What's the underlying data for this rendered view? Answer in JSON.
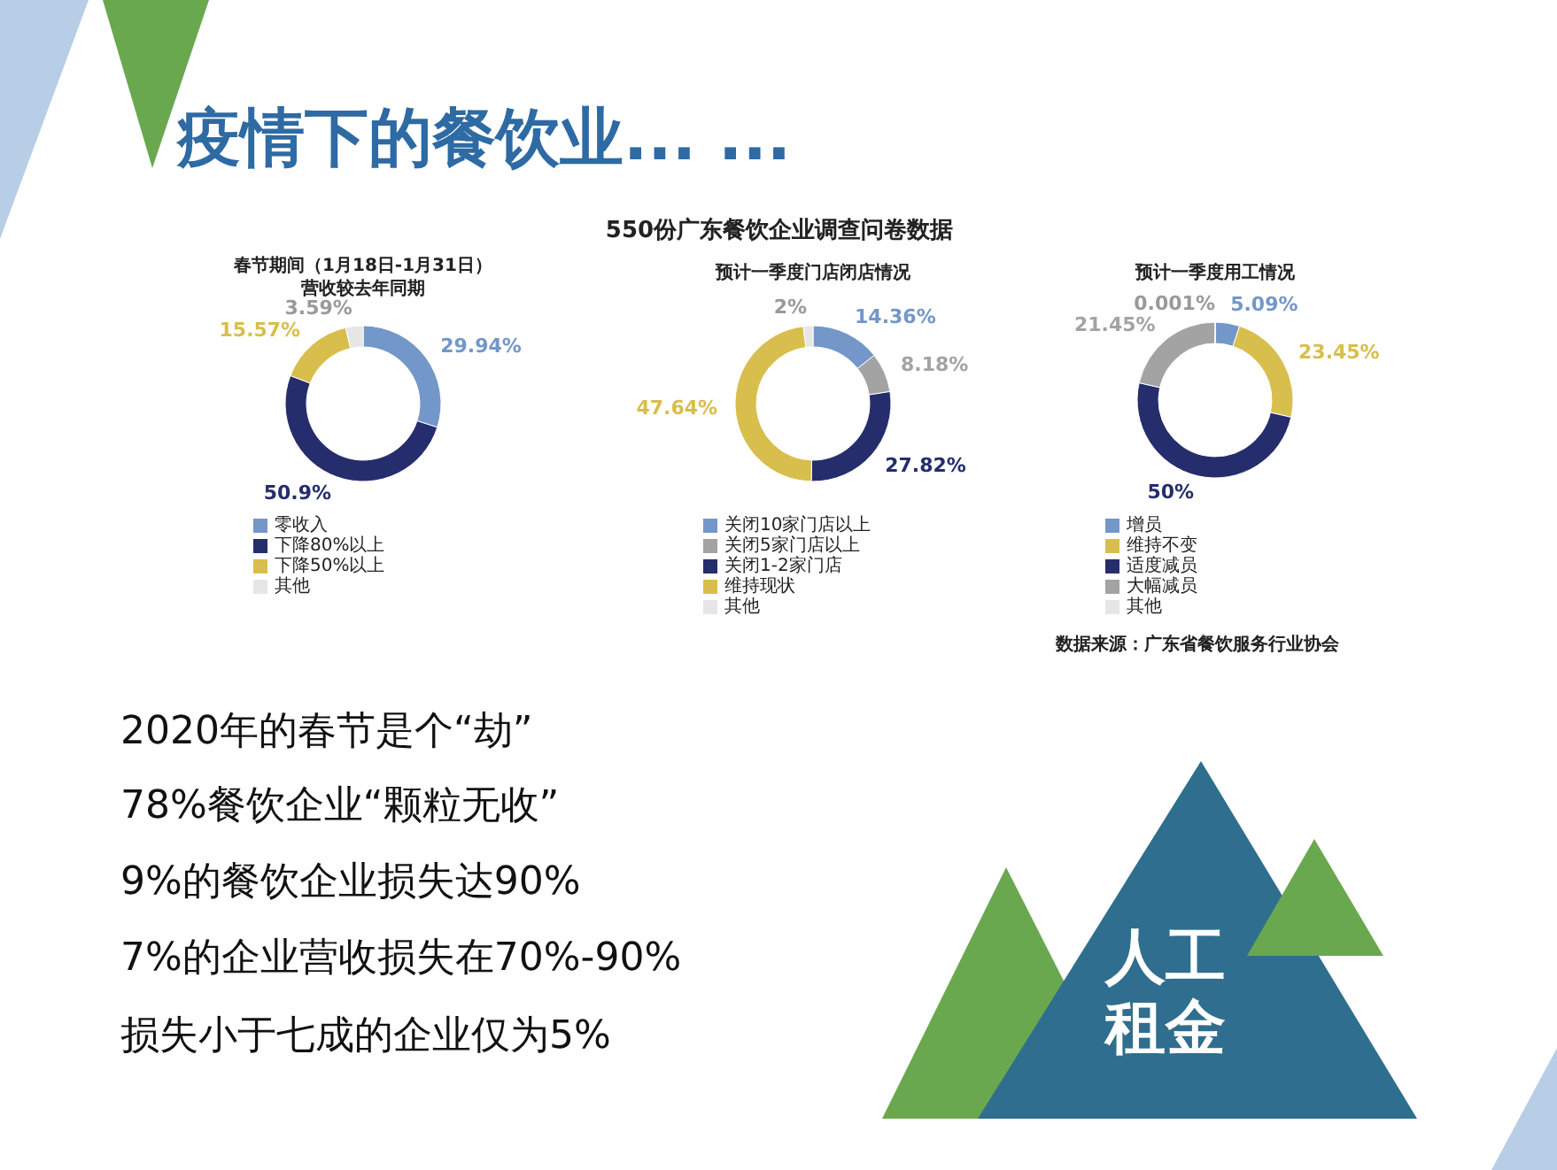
{
  "chart_data": [
    {
      "type": "other",
      "title": "疫情下的餐饮业... ...",
      "subtitle": "550份广东餐饮企业调查问卷数据",
      "annotations": [
        "2020年的春节是个“劫”",
        "78%餐饮企业“颗粒无收”",
        "9%的餐饮企业损失达90%",
        "7%的企业营收损失在70%-90%",
        "损失小于七成的企业仅为5%",
        "人工",
        "租金",
        "数据来源：广东省餐饮服务行业协会"
      ]
    },
    {
      "type": "donut",
      "title": "春节期间（1月18日-1月31日）",
      "subtitle": "营收较去年同期",
      "legend": "bottom",
      "categories": [
        "零收入",
        "下降80%以上",
        "下降50%以上",
        "其他"
      ],
      "values": [
        29.94,
        50.9,
        15.57,
        3.59
      ],
      "value_labels": [
        "29.94%",
        "50.9%",
        "15.57%",
        "3.59%"
      ],
      "colors": [
        "#7397c8",
        "#262d6d",
        "#d8be4c",
        "#e6e6e6"
      ]
    },
    {
      "type": "donut",
      "title": "预计一季度门店闭店情况",
      "legend": "bottom",
      "categories": [
        "关闭10家门店以上",
        "关闭5家门店以上",
        "关闭1-2家门店",
        "维持现状",
        "其他"
      ],
      "values": [
        14.36,
        8.18,
        27.82,
        47.64,
        2
      ],
      "value_labels": [
        "14.36%",
        "8.18%",
        "27.82%",
        "47.64%",
        "2%"
      ],
      "colors": [
        "#7397c8",
        "#a3a3a3",
        "#262d6d",
        "#d8be4c",
        "#e6e6e6"
      ]
    },
    {
      "type": "donut",
      "title": "预计一季度用工情况",
      "legend": "bottom",
      "categories": [
        "增员",
        "维持不变",
        "适度减员",
        "大幅减员",
        "其他"
      ],
      "values": [
        5.09,
        23.45,
        50,
        21.45,
        0.001
      ],
      "value_labels": [
        "5.09%",
        "23.45%",
        "50%",
        "21.45%",
        "0.001%"
      ],
      "colors": [
        "#7397c8",
        "#d8be4c",
        "#262d6d",
        "#a3a3a3",
        "#e6e6e6"
      ]
    }
  ]
}
